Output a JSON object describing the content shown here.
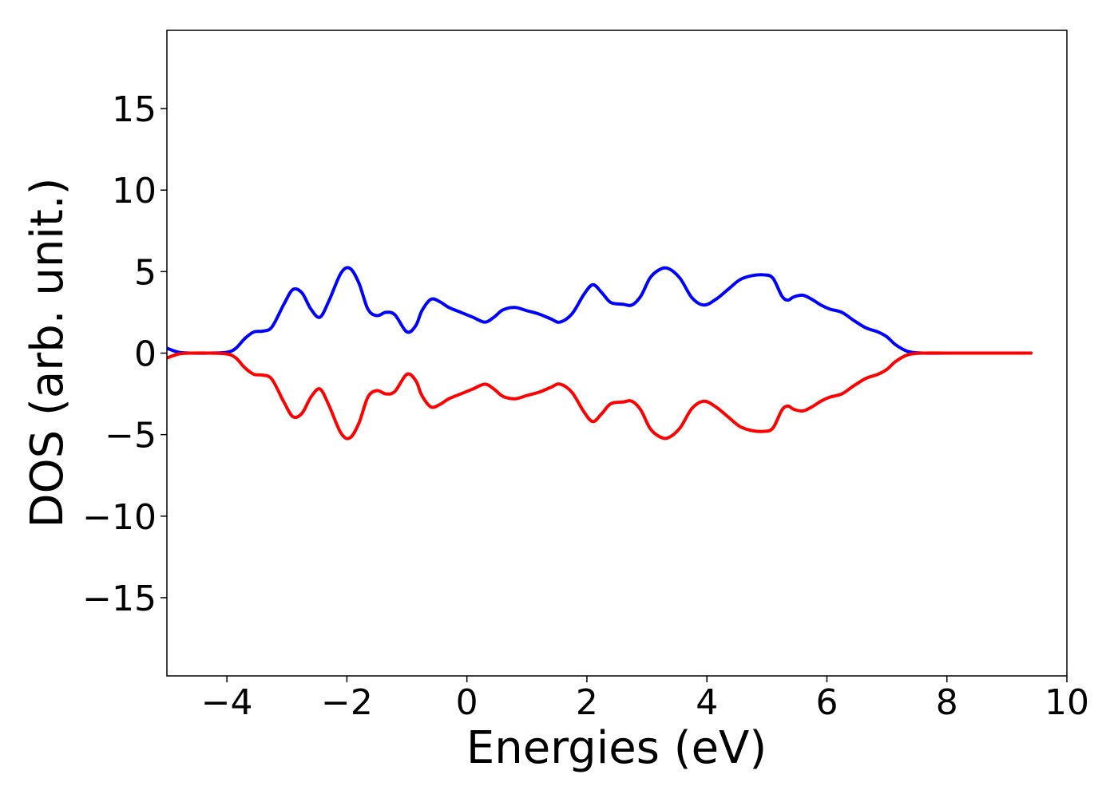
{
  "chart_data": {
    "type": "line",
    "title": "",
    "xlabel": "Energies (eV)",
    "ylabel": "DOS (arb. unit.)",
    "xlim": [
      -5,
      10
    ],
    "ylim": [
      -19.8,
      19.8
    ],
    "xticks": [
      -4,
      -2,
      0,
      2,
      4,
      6,
      8,
      10
    ],
    "xtick_labels": [
      "−4",
      "−2",
      "0",
      "2",
      "4",
      "6",
      "8",
      "10"
    ],
    "yticks": [
      -15,
      -10,
      -5,
      0,
      5,
      10,
      15
    ],
    "ytick_labels": [
      "−15",
      "−10",
      "−5",
      "0",
      "5",
      "10",
      "15"
    ],
    "grid": false,
    "legend": "none",
    "series": [
      {
        "color": "#0000ff",
        "x": [
          -5.0,
          -4.8,
          -4.6,
          -4.3,
          -4.0,
          -3.85,
          -3.7,
          -3.55,
          -3.4,
          -3.25,
          -3.05,
          -2.9,
          -2.75,
          -2.6,
          -2.45,
          -2.3,
          -2.1,
          -1.95,
          -1.8,
          -1.65,
          -1.5,
          -1.35,
          -1.2,
          -1.0,
          -0.85,
          -0.75,
          -0.6,
          -0.45,
          -0.3,
          -0.1,
          0.1,
          0.3,
          0.45,
          0.6,
          0.8,
          1.0,
          1.2,
          1.4,
          1.55,
          1.75,
          1.95,
          2.1,
          2.25,
          2.4,
          2.6,
          2.75,
          2.9,
          3.05,
          3.2,
          3.35,
          3.55,
          3.75,
          3.95,
          4.15,
          4.35,
          4.55,
          4.75,
          4.95,
          5.1,
          5.25,
          5.35,
          5.45,
          5.6,
          5.75,
          5.9,
          6.05,
          6.25,
          6.45,
          6.65,
          6.85,
          7.0,
          7.15,
          7.35,
          7.6,
          8.0,
          8.5,
          9.0,
          9.4
        ],
        "y": [
          0.3,
          0.05,
          0.0,
          0.0,
          0.05,
          0.3,
          0.9,
          1.3,
          1.35,
          1.6,
          3.0,
          3.9,
          3.7,
          2.7,
          2.2,
          3.2,
          4.9,
          5.2,
          4.3,
          2.7,
          2.3,
          2.5,
          2.35,
          1.3,
          1.7,
          2.6,
          3.3,
          3.15,
          2.8,
          2.5,
          2.2,
          1.9,
          2.2,
          2.65,
          2.8,
          2.6,
          2.4,
          2.1,
          1.9,
          2.4,
          3.6,
          4.2,
          3.7,
          3.1,
          3.0,
          2.95,
          3.5,
          4.6,
          5.1,
          5.2,
          4.6,
          3.4,
          2.95,
          3.3,
          3.9,
          4.5,
          4.75,
          4.8,
          4.6,
          3.5,
          3.25,
          3.45,
          3.55,
          3.3,
          2.95,
          2.7,
          2.5,
          2.0,
          1.55,
          1.3,
          1.0,
          0.5,
          0.1,
          0.0,
          0.0,
          0.0,
          0.0,
          0.0
        ]
      },
      {
        "color": "#ff0000",
        "x": [
          -5.0,
          -4.8,
          -4.6,
          -4.3,
          -4.0,
          -3.85,
          -3.7,
          -3.55,
          -3.4,
          -3.25,
          -3.05,
          -2.9,
          -2.75,
          -2.6,
          -2.45,
          -2.3,
          -2.1,
          -1.95,
          -1.8,
          -1.65,
          -1.5,
          -1.35,
          -1.2,
          -1.0,
          -0.85,
          -0.75,
          -0.6,
          -0.45,
          -0.3,
          -0.1,
          0.1,
          0.3,
          0.45,
          0.6,
          0.8,
          1.0,
          1.2,
          1.4,
          1.55,
          1.75,
          1.95,
          2.1,
          2.25,
          2.4,
          2.6,
          2.75,
          2.9,
          3.05,
          3.2,
          3.35,
          3.55,
          3.75,
          3.95,
          4.15,
          4.35,
          4.55,
          4.75,
          4.95,
          5.1,
          5.25,
          5.35,
          5.45,
          5.6,
          5.75,
          5.9,
          6.05,
          6.25,
          6.45,
          6.65,
          6.85,
          7.0,
          7.15,
          7.35,
          7.6,
          8.0,
          8.5,
          9.0,
          9.4
        ],
        "y": [
          -0.3,
          -0.05,
          0.0,
          0.0,
          -0.05,
          -0.3,
          -0.9,
          -1.3,
          -1.35,
          -1.6,
          -3.0,
          -3.9,
          -3.7,
          -2.7,
          -2.2,
          -3.2,
          -4.9,
          -5.2,
          -4.3,
          -2.7,
          -2.3,
          -2.5,
          -2.35,
          -1.3,
          -1.7,
          -2.6,
          -3.3,
          -3.15,
          -2.8,
          -2.5,
          -2.2,
          -1.9,
          -2.2,
          -2.65,
          -2.8,
          -2.6,
          -2.4,
          -2.1,
          -1.9,
          -2.4,
          -3.6,
          -4.2,
          -3.7,
          -3.1,
          -3.0,
          -2.95,
          -3.5,
          -4.6,
          -5.1,
          -5.2,
          -4.6,
          -3.4,
          -2.95,
          -3.3,
          -3.9,
          -4.5,
          -4.75,
          -4.8,
          -4.6,
          -3.5,
          -3.25,
          -3.45,
          -3.55,
          -3.3,
          -2.95,
          -2.7,
          -2.5,
          -2.0,
          -1.55,
          -1.3,
          -1.0,
          -0.5,
          -0.1,
          0.0,
          0.0,
          0.0,
          0.0,
          0.0
        ]
      }
    ]
  }
}
